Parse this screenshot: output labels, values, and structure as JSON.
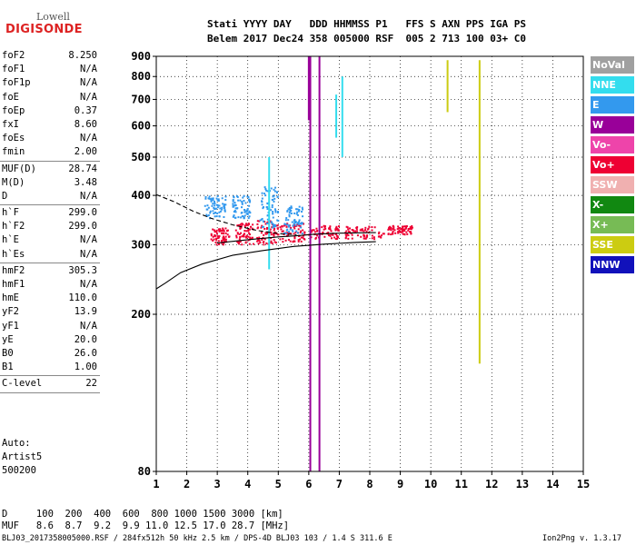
{
  "logo": {
    "line1": "Lowell",
    "line2": "DIGISONDE"
  },
  "header": {
    "row1": "Stati YYYY DAY   DDD HHMMSS P1   FFS S AXN PPS IGA PS",
    "row2": "Belem 2017 Dec24 358 005000 RSF  005 2 713 100 03+ C0"
  },
  "params": [
    {
      "name": "foF2",
      "value": "8.250"
    },
    {
      "name": "foF1",
      "value": "N/A"
    },
    {
      "name": "foF1p",
      "value": "N/A"
    },
    {
      "name": "foE",
      "value": "N/A"
    },
    {
      "name": "foEp",
      "value": "0.37"
    },
    {
      "name": "fxI",
      "value": "8.60"
    },
    {
      "name": "foEs",
      "value": "N/A"
    },
    {
      "name": "fmin",
      "value": "2.00"
    },
    {
      "sep": true
    },
    {
      "name": "MUF(D)",
      "value": "28.74"
    },
    {
      "name": "M(D)",
      "value": "3.48"
    },
    {
      "name": "D",
      "value": "N/A"
    },
    {
      "sep": true
    },
    {
      "name": "h`F",
      "value": "299.0"
    },
    {
      "name": "h`F2",
      "value": "299.0"
    },
    {
      "name": "h`E",
      "value": "N/A"
    },
    {
      "name": "h`Es",
      "value": "N/A"
    },
    {
      "sep": true
    },
    {
      "name": "hmF2",
      "value": "305.3"
    },
    {
      "name": "hmF1",
      "value": "N/A"
    },
    {
      "name": "hmE",
      "value": "110.0"
    },
    {
      "name": "yF2",
      "value": "13.9"
    },
    {
      "name": "yF1",
      "value": "N/A"
    },
    {
      "name": "yE",
      "value": "20.0"
    },
    {
      "name": "B0",
      "value": "26.0"
    },
    {
      "name": "B1",
      "value": "1.00"
    },
    {
      "sep": true
    },
    {
      "name": "C-level",
      "value": "22"
    },
    {
      "sep": true
    }
  ],
  "auto": {
    "line1": "Auto:",
    "line2": "Artist5",
    "line3": "500200"
  },
  "legend": [
    {
      "label": "NoVal",
      "color": "#a0a0a0"
    },
    {
      "label": "NNE",
      "color": "#33ddee"
    },
    {
      "label": "E",
      "color": "#3399ee"
    },
    {
      "label": "W",
      "color": "#990099"
    },
    {
      "label": "Vo-",
      "color": "#ee44aa"
    },
    {
      "label": "Vo+",
      "color": "#ee0033"
    },
    {
      "label": "SSW",
      "color": "#f0b0b0"
    },
    {
      "label": "X-",
      "color": "#118811"
    },
    {
      "label": "X+",
      "color": "#77bb55"
    },
    {
      "label": "SSE",
      "color": "#cccc11"
    },
    {
      "label": "NNW",
      "color": "#1111bb"
    }
  ],
  "bottom": {
    "d_row": "D     100  200  400  600  800 1000 1500 3000 [km]",
    "muf_row": "MUF   8.6  8.7  9.2  9.9 11.0 12.5 17.0 28.7 [MHz]",
    "footer_left": "BLJ03_2017358005000.RSF / 284fx512h 50 kHz 2.5 km / DPS-4D BLJ03 103 / 1.4 S 311.6 E",
    "footer_right": "Ion2Png v. 1.3.17"
  },
  "chart_data": {
    "type": "scatter",
    "title": "",
    "xlabel": "",
    "ylabel": "",
    "xlim": [
      1,
      15
    ],
    "ylim": [
      80,
      900
    ],
    "yscale": "log",
    "grid": true,
    "x_ticks": [
      1,
      2,
      3,
      4,
      5,
      6,
      7,
      8,
      9,
      10,
      11,
      12,
      13,
      14,
      15
    ],
    "y_ticks": [
      80,
      200,
      300,
      400,
      500,
      600,
      700,
      800,
      900
    ],
    "x_tick_labels": [
      "1",
      "2",
      "3",
      "4",
      "5",
      "6",
      "7",
      "8",
      "9",
      "10",
      "11",
      "12",
      "13",
      "14",
      "15"
    ],
    "y_tick_labels": [
      "80",
      "200",
      "300",
      "400",
      "500",
      "600",
      "700",
      "800",
      "900"
    ],
    "series": [
      {
        "color": "#ee0033",
        "clusters": [
          [
            2.8,
            3.4,
            300,
            330
          ],
          [
            3.6,
            4.2,
            300,
            340
          ],
          [
            4.3,
            5.0,
            300,
            345
          ],
          [
            5.0,
            5.9,
            305,
            340
          ],
          [
            6.0,
            7.0,
            310,
            335
          ],
          [
            7.2,
            8.5,
            310,
            335
          ],
          [
            8.6,
            9.4,
            318,
            335
          ]
        ]
      },
      {
        "color": "#3399ee",
        "clusters": [
          [
            2.6,
            3.3,
            350,
            400
          ],
          [
            3.5,
            4.1,
            350,
            400
          ],
          [
            4.4,
            5.0,
            330,
            420
          ],
          [
            5.2,
            5.8,
            320,
            380
          ]
        ]
      },
      {
        "color": "#33ddee",
        "vertical_streaks": [
          [
            7.1,
            500,
            800
          ],
          [
            6.9,
            560,
            720
          ],
          [
            4.7,
            260,
            500
          ]
        ]
      },
      {
        "color": "#990099",
        "vertical_streaks": [
          [
            6.05,
            80,
            900
          ],
          [
            6.35,
            80,
            900
          ],
          [
            6.0,
            620,
            900
          ]
        ]
      },
      {
        "color": "#cccc11",
        "vertical_streaks": [
          [
            11.6,
            150,
            880
          ],
          [
            10.55,
            650,
            880
          ]
        ]
      }
    ],
    "curves": [
      {
        "style": "solid",
        "points": [
          [
            1.0,
            232
          ],
          [
            1.3,
            240
          ],
          [
            1.8,
            255
          ],
          [
            2.5,
            268
          ],
          [
            3.5,
            282
          ],
          [
            4.5,
            290
          ],
          [
            5.5,
            297
          ],
          [
            6.5,
            301
          ],
          [
            7.5,
            304
          ],
          [
            8.2,
            305.3
          ]
        ]
      },
      {
        "style": "solid",
        "points": [
          [
            3.0,
            303
          ],
          [
            4.0,
            309
          ],
          [
            5.0,
            314
          ],
          [
            5.6,
            316
          ],
          [
            6.2,
            319
          ],
          [
            7.0,
            321
          ],
          [
            8.2,
            322
          ]
        ]
      },
      {
        "style": "dashed",
        "points": [
          [
            1.0,
            402
          ],
          [
            1.6,
            385
          ],
          [
            2.2,
            365
          ],
          [
            2.8,
            350
          ],
          [
            3.5,
            337
          ],
          [
            4.3,
            326
          ],
          [
            5.0,
            320
          ],
          [
            5.6,
            318
          ]
        ]
      }
    ]
  }
}
